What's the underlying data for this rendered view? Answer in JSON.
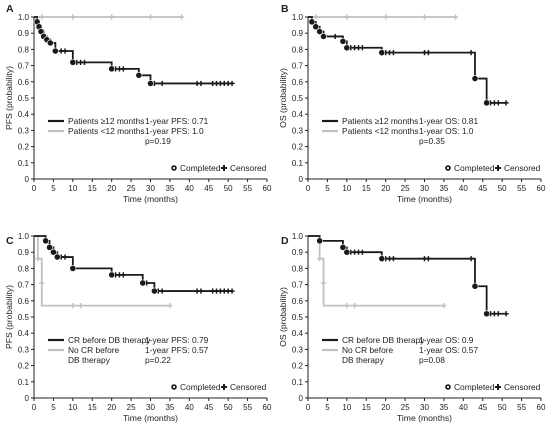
{
  "colors": {
    "black_series": "#1a1a1a",
    "gray_series": "#c0c0c0",
    "axis": "#222222"
  },
  "chart_data": [
    {
      "panel": "A",
      "type": "line",
      "xlabel": "Time (months)",
      "ylabel": "PFS (probability)",
      "xlim": [
        0,
        60
      ],
      "ylim": [
        0,
        1.0
      ],
      "xticks": [
        "0",
        "5",
        "10",
        "15",
        "20",
        "25",
        "30",
        "35",
        "40",
        "45",
        "50",
        "55",
        "60"
      ],
      "yticks": [
        "0",
        "0.1",
        "0.2",
        "0.3",
        "0.4",
        "0.5",
        "0.6",
        "0.7",
        "0.8",
        "0.9",
        "1.0"
      ],
      "grid": false,
      "series": [
        {
          "name": "Patients ≥12 months",
          "stat": "1-year PFS: 0.71",
          "color": "black",
          "steps": [
            [
              0,
              1.0
            ],
            [
              0.8,
              0.97
            ],
            [
              1.3,
              0.94
            ],
            [
              1.8,
              0.91
            ],
            [
              2.5,
              0.88
            ],
            [
              3.3,
              0.86
            ],
            [
              4.2,
              0.84
            ],
            [
              5.5,
              0.79
            ],
            [
              10,
              0.72
            ],
            [
              20,
              0.68
            ],
            [
              27,
              0.64
            ],
            [
              30,
              0.59
            ],
            [
              51,
              0.59
            ]
          ],
          "events": [
            [
              0.8,
              0.97
            ],
            [
              1.3,
              0.94
            ],
            [
              1.8,
              0.91
            ],
            [
              2.5,
              0.88
            ],
            [
              3.3,
              0.86
            ],
            [
              4.2,
              0.84
            ],
            [
              5.5,
              0.79
            ],
            [
              10,
              0.72
            ],
            [
              20,
              0.68
            ],
            [
              27,
              0.64
            ],
            [
              30,
              0.59
            ]
          ],
          "censored": [
            [
              7,
              0.79
            ],
            [
              8,
              0.79
            ],
            [
              11,
              0.72
            ],
            [
              12,
              0.72
            ],
            [
              13,
              0.72
            ],
            [
              21,
              0.68
            ],
            [
              22,
              0.68
            ],
            [
              23,
              0.68
            ],
            [
              31,
              0.59
            ],
            [
              33,
              0.59
            ],
            [
              42,
              0.59
            ],
            [
              43,
              0.59
            ],
            [
              46,
              0.59
            ],
            [
              47,
              0.59
            ],
            [
              48,
              0.59
            ],
            [
              49,
              0.59
            ],
            [
              50,
              0.59
            ],
            [
              51,
              0.59
            ]
          ]
        },
        {
          "name": "Patients <12 months",
          "stat": "1-year PFS: 1.0",
          "color": "gray",
          "steps": [
            [
              0,
              1.0
            ],
            [
              38,
              1.0
            ]
          ],
          "events": [],
          "censored": [
            [
              2,
              1.0
            ],
            [
              10,
              1.0
            ],
            [
              20,
              1.0
            ],
            [
              30,
              1.0
            ],
            [
              38,
              1.0
            ]
          ]
        }
      ],
      "pvalue": "p=0.19",
      "symbol_legend": {
        "completed": "Completed",
        "censored": "Censored"
      }
    },
    {
      "panel": "B",
      "type": "line",
      "xlabel": "Time (months)",
      "ylabel": "OS (probability)",
      "xlim": [
        0,
        60
      ],
      "ylim": [
        0,
        1.0
      ],
      "xticks": [
        "0",
        "5",
        "10",
        "15",
        "20",
        "25",
        "30",
        "35",
        "40",
        "45",
        "50",
        "55",
        "60"
      ],
      "yticks": [
        "0",
        "0.1",
        "0.2",
        "0.3",
        "0.4",
        "0.5",
        "0.6",
        "0.7",
        "0.8",
        "0.9",
        "1.0"
      ],
      "grid": false,
      "series": [
        {
          "name": "Patients ≥12 months",
          "stat": "1-year OS: 0.81",
          "color": "black",
          "steps": [
            [
              0,
              1.0
            ],
            [
              1,
              0.97
            ],
            [
              2,
              0.94
            ],
            [
              3,
              0.91
            ],
            [
              4,
              0.88
            ],
            [
              9,
              0.85
            ],
            [
              10,
              0.81
            ],
            [
              19,
              0.78
            ],
            [
              43,
              0.62
            ],
            [
              46,
              0.47
            ],
            [
              51,
              0.47
            ]
          ],
          "events": [
            [
              1,
              0.97
            ],
            [
              2,
              0.94
            ],
            [
              3,
              0.91
            ],
            [
              4,
              0.88
            ],
            [
              9,
              0.85
            ],
            [
              10,
              0.81
            ],
            [
              19,
              0.78
            ],
            [
              43,
              0.62
            ],
            [
              46,
              0.47
            ]
          ],
          "censored": [
            [
              7,
              0.88
            ],
            [
              11,
              0.81
            ],
            [
              12,
              0.81
            ],
            [
              13,
              0.81
            ],
            [
              14,
              0.81
            ],
            [
              20,
              0.78
            ],
            [
              21,
              0.78
            ],
            [
              22,
              0.78
            ],
            [
              30,
              0.78
            ],
            [
              31,
              0.78
            ],
            [
              42,
              0.78
            ],
            [
              47,
              0.47
            ],
            [
              48,
              0.47
            ],
            [
              49,
              0.47
            ],
            [
              51,
              0.47
            ]
          ]
        },
        {
          "name": "Patients <12 months",
          "stat": "1-year OS: 1.0",
          "color": "gray",
          "steps": [
            [
              0,
              1.0
            ],
            [
              38,
              1.0
            ]
          ],
          "events": [],
          "censored": [
            [
              2,
              1.0
            ],
            [
              10,
              1.0
            ],
            [
              20,
              1.0
            ],
            [
              30,
              1.0
            ],
            [
              38,
              1.0
            ]
          ]
        }
      ],
      "pvalue": "p=0.35",
      "symbol_legend": {
        "completed": "Completed",
        "censored": "Censored"
      }
    },
    {
      "panel": "C",
      "type": "line",
      "xlabel": "Time (months)",
      "ylabel": "PFS (probability)",
      "xlim": [
        0,
        60
      ],
      "ylim": [
        0,
        1.0
      ],
      "xticks": [
        "0",
        "5",
        "10",
        "15",
        "20",
        "25",
        "30",
        "35",
        "40",
        "45",
        "50",
        "55",
        "60"
      ],
      "yticks": [
        "0",
        "0.1",
        "0.2",
        "0.3",
        "0.4",
        "0.5",
        "0.6",
        "0.7",
        "0.8",
        "0.9",
        "1.0"
      ],
      "grid": false,
      "series": [
        {
          "name": "CR before DB therapy",
          "stat": "1-year PFS: 0.79",
          "color": "black",
          "steps": [
            [
              0,
              1.0
            ],
            [
              3,
              0.97
            ],
            [
              4,
              0.93
            ],
            [
              5,
              0.9
            ],
            [
              6,
              0.87
            ],
            [
              10,
              0.8
            ],
            [
              20,
              0.76
            ],
            [
              28,
              0.71
            ],
            [
              31,
              0.66
            ],
            [
              51,
              0.66
            ]
          ],
          "events": [
            [
              3,
              0.97
            ],
            [
              4,
              0.93
            ],
            [
              5,
              0.9
            ],
            [
              6,
              0.87
            ],
            [
              10,
              0.8
            ],
            [
              20,
              0.76
            ],
            [
              28,
              0.71
            ],
            [
              31,
              0.66
            ]
          ],
          "censored": [
            [
              7,
              0.87
            ],
            [
              8,
              0.87
            ],
            [
              21,
              0.76
            ],
            [
              22,
              0.76
            ],
            [
              23,
              0.76
            ],
            [
              29,
              0.71
            ],
            [
              32,
              0.66
            ],
            [
              33,
              0.66
            ],
            [
              42,
              0.66
            ],
            [
              43,
              0.66
            ],
            [
              46,
              0.66
            ],
            [
              47,
              0.66
            ],
            [
              48,
              0.66
            ],
            [
              49,
              0.66
            ],
            [
              50,
              0.66
            ],
            [
              51,
              0.66
            ]
          ]
        },
        {
          "name": "No CR before DB therapy",
          "name_lines": [
            "No CR before",
            "DB therapy"
          ],
          "stat": "1-year PFS: 0.57",
          "color": "gray",
          "steps": [
            [
              0,
              1.0
            ],
            [
              1.0,
              0.86
            ],
            [
              2.0,
              0.57
            ],
            [
              35,
              0.57
            ]
          ],
          "events": [],
          "censored": [
            [
              1.0,
              0.86
            ],
            [
              2.0,
              0.71
            ],
            [
              10,
              0.57
            ],
            [
              12,
              0.57
            ],
            [
              35,
              0.57
            ]
          ]
        }
      ],
      "pvalue": "p=0.22",
      "symbol_legend": {
        "completed": "Completed",
        "censored": "Censored"
      }
    },
    {
      "panel": "D",
      "type": "line",
      "xlabel": "Time (months)",
      "ylabel": "OS (probability)",
      "xlim": [
        0,
        60
      ],
      "ylim": [
        0,
        1.0
      ],
      "xticks": [
        "0",
        "5",
        "10",
        "15",
        "20",
        "25",
        "30",
        "35",
        "40",
        "45",
        "50",
        "55",
        "60"
      ],
      "yticks": [
        "0",
        "0.1",
        "0.2",
        "0.3",
        "0.4",
        "0.5",
        "0.6",
        "0.7",
        "0.8",
        "0.9",
        "1.0"
      ],
      "grid": false,
      "series": [
        {
          "name": "CR before DB therapy",
          "stat": "1-year OS: 0.9",
          "color": "black",
          "steps": [
            [
              0,
              1.0
            ],
            [
              3,
              0.97
            ],
            [
              9,
              0.93
            ],
            [
              10,
              0.9
            ],
            [
              19,
              0.86
            ],
            [
              43,
              0.69
            ],
            [
              46,
              0.52
            ],
            [
              51,
              0.52
            ]
          ],
          "events": [
            [
              3,
              0.97
            ],
            [
              9,
              0.93
            ],
            [
              10,
              0.9
            ],
            [
              19,
              0.86
            ],
            [
              43,
              0.69
            ],
            [
              46,
              0.52
            ]
          ],
          "censored": [
            [
              11,
              0.9
            ],
            [
              12,
              0.9
            ],
            [
              13,
              0.9
            ],
            [
              14,
              0.9
            ],
            [
              20,
              0.86
            ],
            [
              21,
              0.86
            ],
            [
              22,
              0.86
            ],
            [
              30,
              0.86
            ],
            [
              31,
              0.86
            ],
            [
              42,
              0.86
            ],
            [
              47,
              0.52
            ],
            [
              48,
              0.52
            ],
            [
              49,
              0.52
            ],
            [
              51,
              0.52
            ]
          ]
        },
        {
          "name": "No CR before DB therapy",
          "name_lines": [
            "No CR before",
            "DB therapy"
          ],
          "stat": "1-year OS: 0.57",
          "color": "gray",
          "steps": [
            [
              0,
              1.0
            ],
            [
              3,
              0.86
            ],
            [
              4,
              0.57
            ],
            [
              35,
              0.57
            ]
          ],
          "events": [],
          "censored": [
            [
              3,
              0.86
            ],
            [
              4,
              0.71
            ],
            [
              10,
              0.57
            ],
            [
              12,
              0.57
            ],
            [
              35,
              0.57
            ]
          ]
        }
      ],
      "pvalue": "p=0.08",
      "symbol_legend": {
        "completed": "Completed",
        "censored": "Censored"
      }
    }
  ]
}
